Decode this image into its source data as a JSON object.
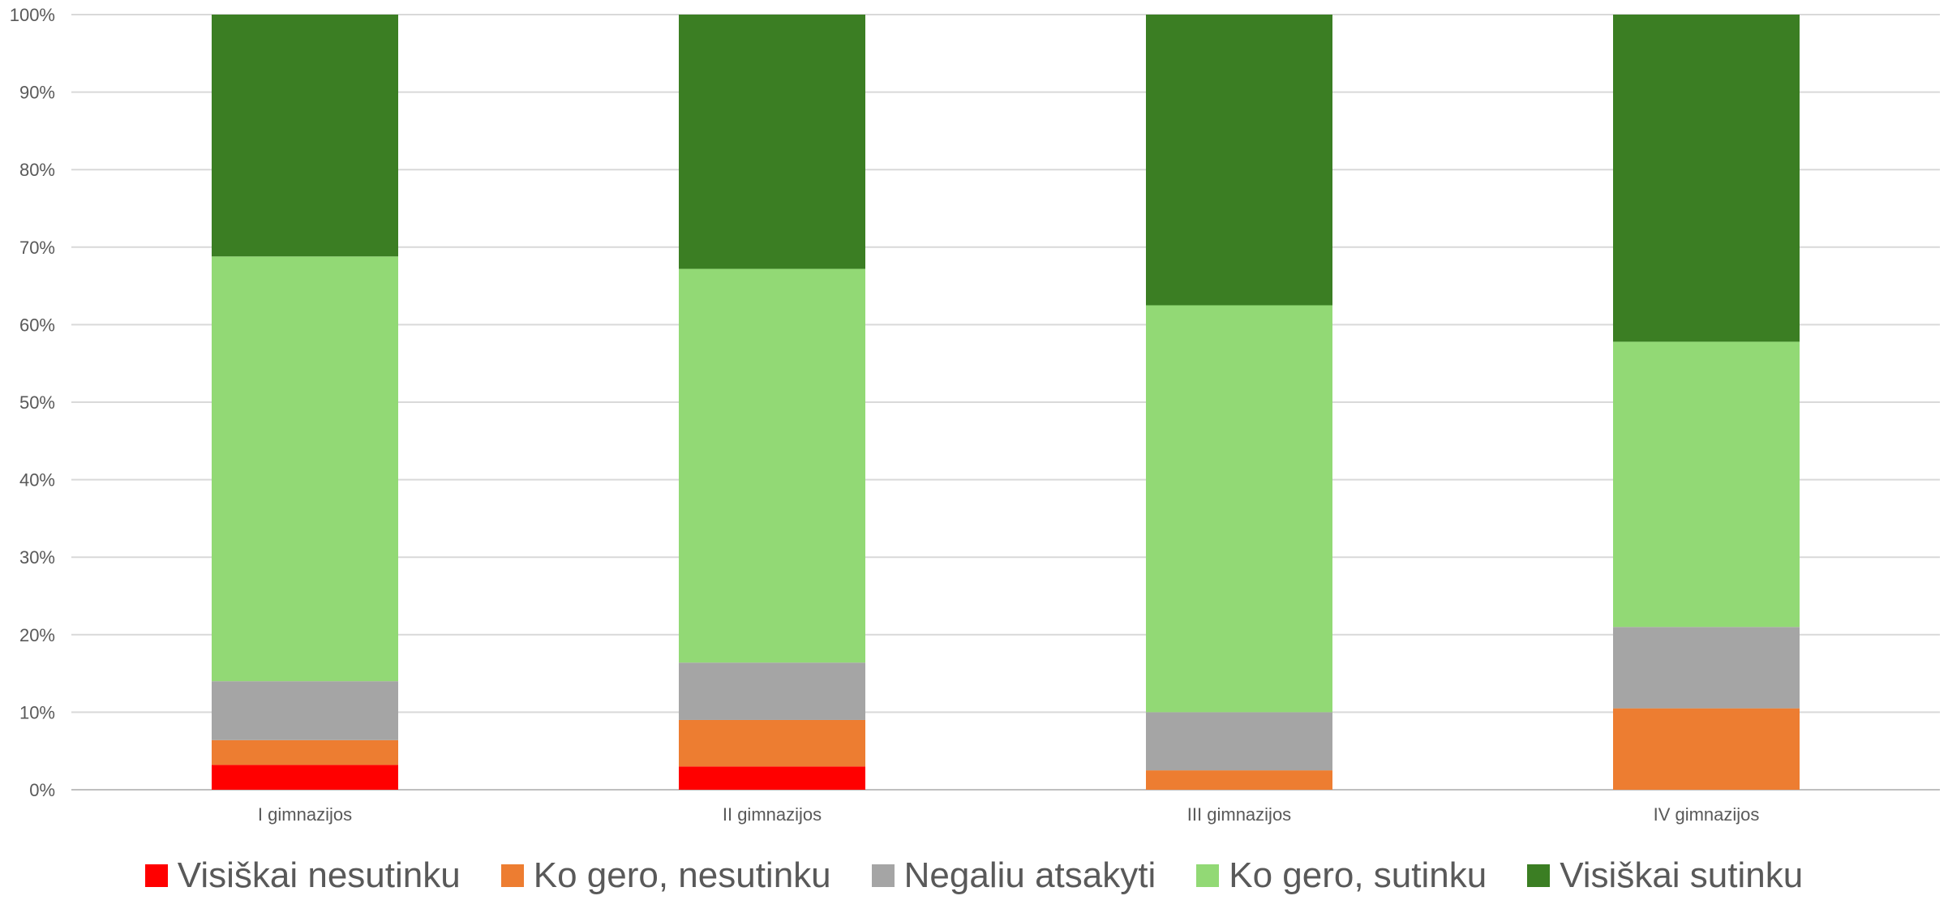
{
  "chart_data": {
    "type": "bar",
    "stacked": true,
    "percent": true,
    "categories": [
      "I gimnazijos",
      "II gimnazijos",
      "III gimnazijos",
      "IV gimnazijos"
    ],
    "series": [
      {
        "name": "Visiškai nesutinku",
        "color": "#FF0000",
        "values": [
          3.2,
          3.0,
          0.0,
          0.0
        ]
      },
      {
        "name": "Ko gero, nesutinku",
        "color": "#ED7D31",
        "values": [
          3.2,
          6.0,
          2.5,
          10.5
        ]
      },
      {
        "name": "Negaliu atsakyti",
        "color": "#A5A5A5",
        "values": [
          7.6,
          7.4,
          7.5,
          10.5
        ]
      },
      {
        "name": "Ko gero, sutinku",
        "color": "#92D975",
        "values": [
          54.8,
          50.8,
          52.5,
          36.8
        ]
      },
      {
        "name": "Visiškai sutinku",
        "color": "#3B7E23",
        "values": [
          31.2,
          32.8,
          37.5,
          42.2
        ]
      }
    ],
    "ylim": [
      0,
      100
    ],
    "yticks": [
      0,
      10,
      20,
      30,
      40,
      50,
      60,
      70,
      80,
      90,
      100
    ],
    "ytick_labels": [
      "0%",
      "10%",
      "20%",
      "30%",
      "40%",
      "50%",
      "60%",
      "70%",
      "80%",
      "90%",
      "100%"
    ],
    "grid": true,
    "legend_position": "bottom"
  }
}
